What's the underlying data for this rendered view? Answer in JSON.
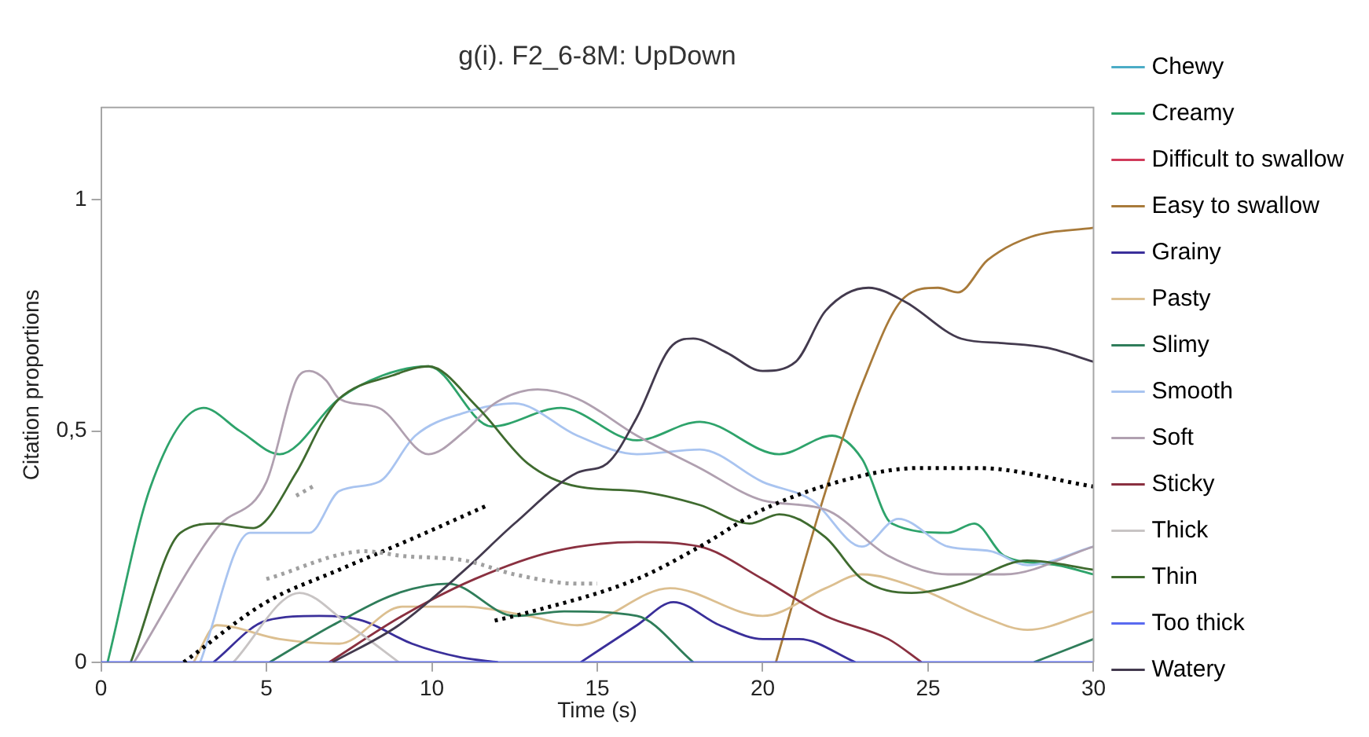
{
  "chart_data": {
    "type": "line",
    "title": "g(i). F2_6-8M: UpDown",
    "xlabel": "Time (s)",
    "ylabel": "Citation proportions",
    "xlim": [
      0,
      30
    ],
    "xticks": [
      0,
      5,
      10,
      15,
      20,
      25,
      30
    ],
    "ylim": [
      0,
      1.2
    ],
    "yticks": [
      0,
      {
        "value": 0.5,
        "label": "0,5"
      },
      1
    ],
    "grid": false,
    "legend": "right",
    "marker": "none",
    "series": [
      {
        "name": "Chewy",
        "color": "#4bacc6"
      },
      {
        "name": "Creamy",
        "color": "#2ea36b",
        "x": [
          0.2,
          1.5,
          3.1,
          4.2,
          5.4,
          7.2,
          8.5,
          9.9,
          11.8,
          13.9,
          16.2,
          18.1,
          20.5,
          22.1,
          23,
          23.9,
          25.6,
          26.4,
          27.3,
          28.9,
          30
        ],
        "values": [
          0,
          0.38,
          0.55,
          0.5,
          0.45,
          0.57,
          0.62,
          0.64,
          0.51,
          0.55,
          0.48,
          0.52,
          0.45,
          0.49,
          0.44,
          0.3,
          0.28,
          0.3,
          0.23,
          0.21,
          0.19
        ]
      },
      {
        "name": "Difficult to swallow",
        "color": "#d03a5a"
      },
      {
        "name": "Easy to swallow",
        "color": "#a87a3a",
        "x": [
          20.4,
          21.9,
          23,
          24.3,
          25.3,
          25.9,
          26.8,
          28.1,
          30
        ],
        "values": [
          0,
          0.37,
          0.6,
          0.79,
          0.81,
          0.8,
          0.87,
          0.92,
          0.94
        ]
      },
      {
        "name": "Grainy",
        "color": "#3a2f9a",
        "x": [
          3.4,
          5,
          6.6,
          7.9,
          9.4,
          10.9,
          12,
          13.2,
          14.5,
          16.2,
          17.3,
          18.7,
          20,
          21.1,
          22.8
        ],
        "values": [
          0,
          0.09,
          0.1,
          0.09,
          0.04,
          0.01,
          0,
          null,
          0,
          0.08,
          0.13,
          0.08,
          0.05,
          0.05,
          0
        ]
      },
      {
        "name": "Pasty",
        "color": "#dcbf90",
        "x": [
          2.8,
          3.5,
          5.4,
          7.2,
          9.1,
          11,
          12.9,
          14.4,
          17.2,
          20,
          21.9,
          23,
          24.7,
          26.6,
          28,
          30
        ],
        "values": [
          0,
          0.08,
          0.05,
          0.04,
          0.12,
          0.12,
          0.1,
          0.08,
          0.16,
          0.1,
          0.16,
          0.19,
          0.16,
          0.1,
          0.07,
          0.11
        ]
      },
      {
        "name": "Slimy",
        "color": "#2f7d5a",
        "x": [
          5.1,
          7,
          9,
          10.5,
          12.5,
          14,
          16.2,
          17.9,
          23,
          28.2,
          30
        ],
        "values": [
          0,
          0.08,
          0.15,
          0.17,
          0.1,
          0.11,
          0.1,
          0,
          null,
          0,
          0.05
        ]
      },
      {
        "name": "Smooth",
        "color": "#a9c4f0",
        "x": [
          3,
          4.5,
          6.3,
          7.2,
          8.4,
          9.5,
          11,
          12.5,
          14.4,
          16.2,
          18.1,
          20,
          21.5,
          23,
          24.1,
          25.6,
          26.9,
          28,
          30
        ],
        "values": [
          0,
          0.28,
          0.28,
          0.37,
          0.39,
          0.49,
          0.54,
          0.56,
          0.49,
          0.45,
          0.46,
          0.39,
          0.35,
          0.25,
          0.31,
          0.25,
          0.24,
          0.21,
          0.25
        ]
      },
      {
        "name": "Soft",
        "color": "#b0a0b0",
        "x": [
          1,
          3.5,
          5,
          5.9,
          6.3,
          6.8,
          7.2,
          8.4,
          9.9,
          11,
          11.9,
          13.2,
          14.4,
          16.2,
          18.1,
          20,
          21.9,
          23.8,
          25.6,
          27.3,
          30
        ],
        "values": [
          0,
          0.29,
          0.39,
          0.61,
          0.63,
          0.61,
          0.57,
          0.55,
          0.45,
          0.5,
          0.56,
          0.59,
          0.57,
          0.49,
          0.42,
          0.35,
          0.33,
          0.23,
          0.19,
          0.19,
          0.25
        ]
      },
      {
        "name": "Sticky",
        "color": "#8a3040",
        "x": [
          6.9,
          9.1,
          11.3,
          13.7,
          16.2,
          18.1,
          20,
          21.9,
          23.8,
          24.8
        ],
        "values": [
          0,
          0.1,
          0.18,
          0.24,
          0.26,
          0.25,
          0.18,
          0.1,
          0.05,
          0
        ]
      },
      {
        "name": "Thick",
        "color": "#c8c4c4",
        "x": [
          4,
          6,
          7.5,
          9
        ],
        "values": [
          0,
          0.15,
          0.08,
          0
        ]
      },
      {
        "name": "Thin",
        "color": "#3f6b2f",
        "x": [
          0.9,
          2.4,
          3.5,
          4.6,
          5.9,
          6.7,
          7.2,
          8.8,
          9.9,
          11.4,
          12.9,
          14.4,
          16.2,
          18.1,
          19.6,
          20.5,
          21.9,
          23,
          24.5,
          26,
          28,
          30
        ],
        "values": [
          0,
          0.28,
          0.3,
          0.29,
          0.41,
          0.52,
          0.57,
          0.62,
          0.64,
          0.55,
          0.43,
          0.38,
          0.37,
          0.34,
          0.3,
          0.32,
          0.27,
          0.18,
          0.15,
          0.17,
          0.22,
          0.2
        ]
      },
      {
        "name": "Too thick",
        "color": "#5a6af0",
        "x": [
          0,
          30
        ],
        "values": [
          0,
          0
        ]
      },
      {
        "name": "Watery",
        "color": "#433a4e",
        "x": [
          7,
          9,
          11,
          12.5,
          14.4,
          15.3,
          16.2,
          17.2,
          17.9,
          18.9,
          20,
          21,
          21.9,
          23.2,
          24.3,
          26,
          27.3,
          28.6,
          30
        ],
        "values": [
          0,
          0.08,
          0.2,
          0.3,
          0.41,
          0.43,
          0.53,
          0.68,
          0.7,
          0.67,
          0.63,
          0.65,
          0.76,
          0.81,
          0.78,
          0.7,
          0.69,
          0.68,
          0.65
        ]
      },
      {
        "color": "#000000",
        "line_style": "dotted",
        "x": [
          2.5,
          5,
          7.2,
          9.5,
          11.7
        ],
        "values": [
          0,
          0.13,
          0.2,
          0.27,
          0.34
        ]
      },
      {
        "color": "#000000",
        "line_style": "dotted",
        "x": [
          11.9,
          12.5,
          16.2,
          18.1,
          20,
          22.8,
          24.7,
          26.5,
          30
        ],
        "values": [
          0.09,
          0.1,
          0.18,
          0.25,
          0.33,
          0.4,
          0.42,
          0.42,
          0.38
        ]
      },
      {
        "color": "#a0a0a0",
        "line_style": "dotted",
        "x": [
          5,
          8,
          9.1,
          11,
          12.5,
          14.4,
          15
        ],
        "values": [
          0.18,
          0.24,
          0.23,
          0.22,
          0.19,
          0.17,
          0.17
        ]
      },
      {
        "color": "#a0a0a0",
        "line_style": "dotted",
        "x": [
          5.9,
          6.4
        ],
        "values": [
          0.36,
          0.38
        ]
      }
    ]
  }
}
